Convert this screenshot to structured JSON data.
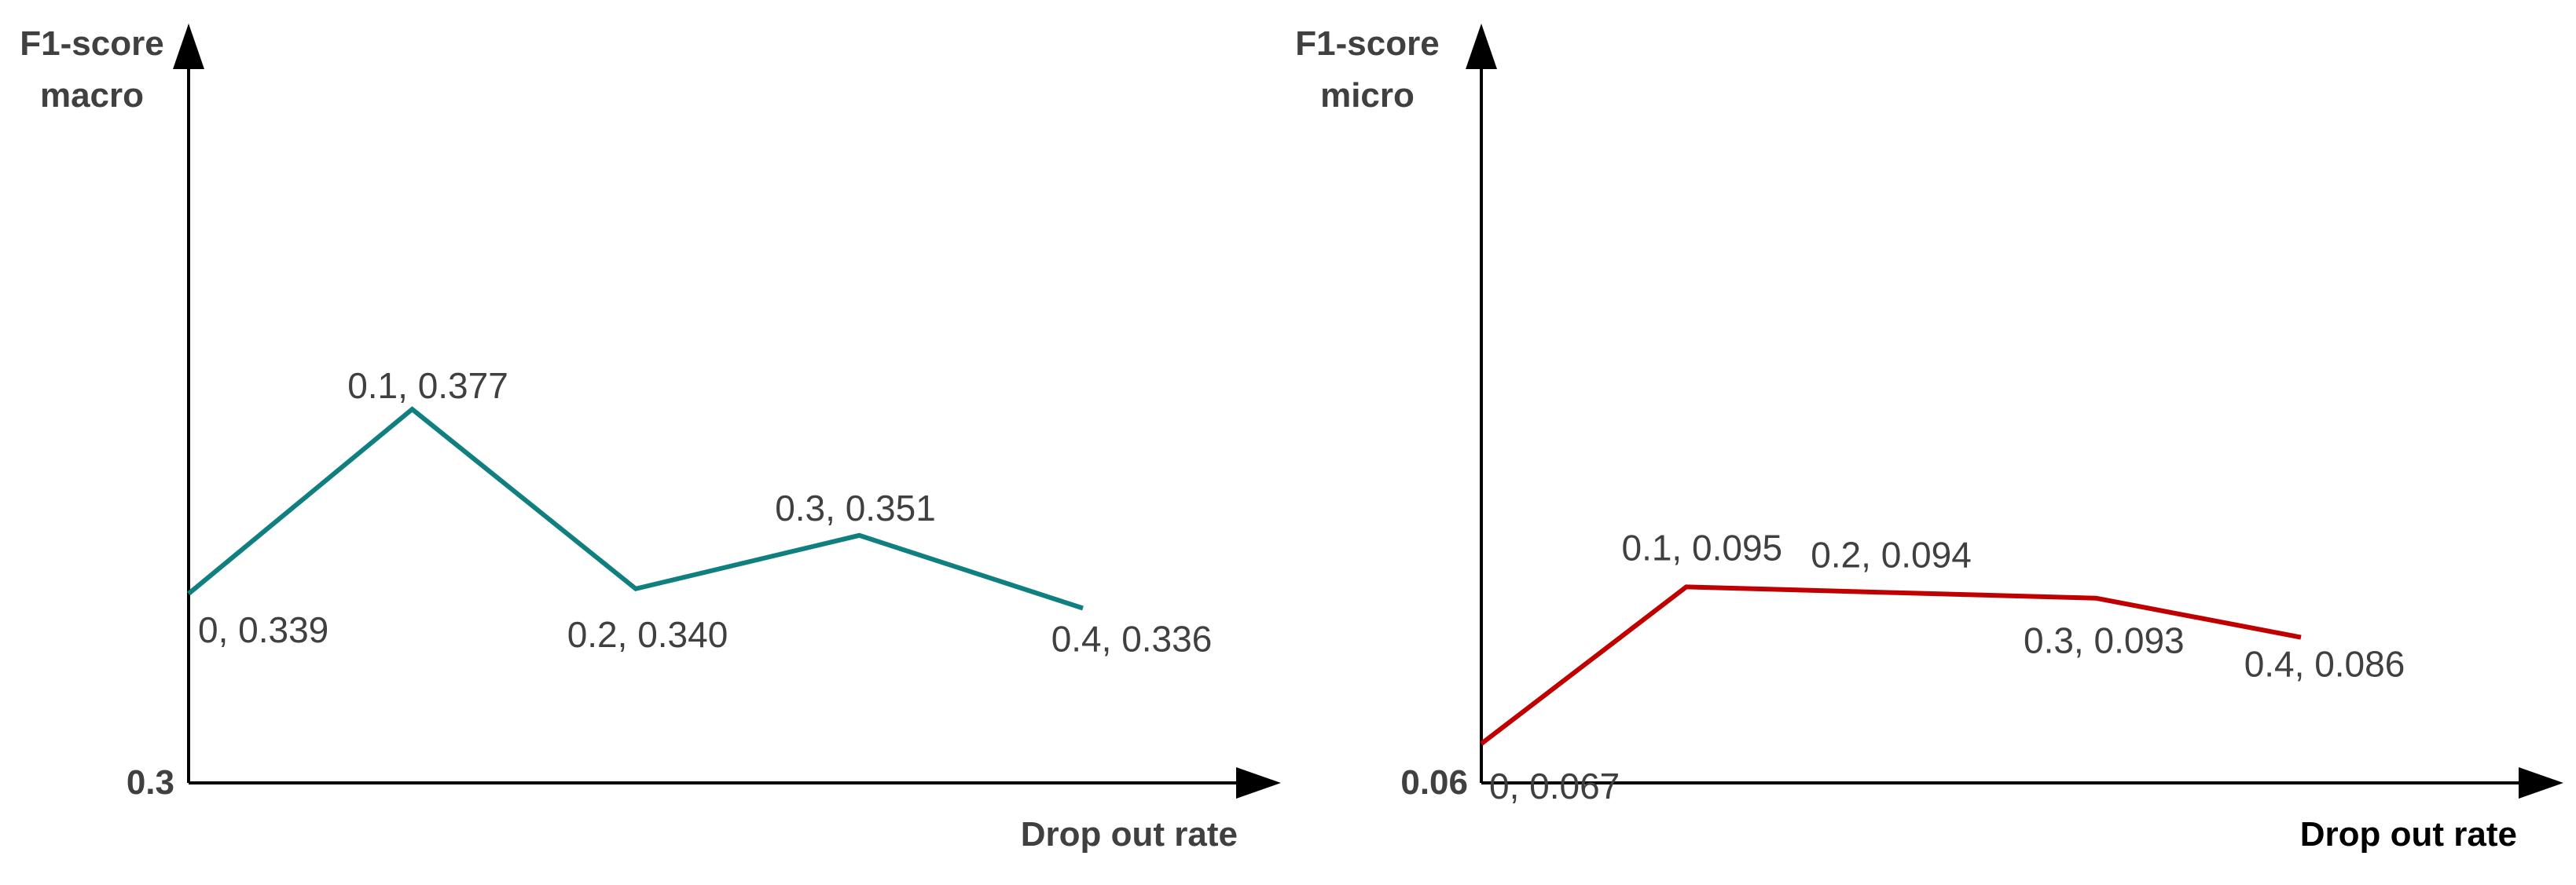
{
  "chart_data": [
    {
      "type": "line",
      "name": "macro",
      "x": [
        0,
        0.1,
        0.2,
        0.3,
        0.4
      ],
      "values": [
        0.339,
        0.377,
        0.34,
        0.351,
        0.336
      ],
      "point_labels": [
        "0, 0.339",
        "0.1, 0.377",
        "0.2, 0.340",
        "0.3, 0.351",
        "0.4, 0.336"
      ],
      "ylabel_lines": [
        "F1-score",
        "macro"
      ],
      "xlabel": "Drop out rate",
      "y_base_label": "0.3",
      "ylim": [
        0.3,
        0.45
      ],
      "xlim": [
        0,
        0.4
      ],
      "color": "#0f7f7f",
      "xlabel_color": "#404040"
    },
    {
      "type": "line",
      "name": "micro",
      "x": [
        0,
        0.1,
        0.2,
        0.3,
        0.4
      ],
      "values": [
        0.067,
        0.095,
        0.094,
        0.093,
        0.086
      ],
      "point_labels": [
        "0, 0.067",
        "0.1, 0.095",
        "0.2, 0.094",
        "0.3, 0.093",
        "0.4, 0.086"
      ],
      "ylabel_lines": [
        "F1-score",
        "micro"
      ],
      "xlabel": "Drop out rate",
      "y_base_label": "0.06",
      "ylim": [
        0.06,
        0.19
      ],
      "xlim": [
        0,
        0.4
      ],
      "color": "#c00000",
      "xlabel_color": "#000000"
    }
  ]
}
